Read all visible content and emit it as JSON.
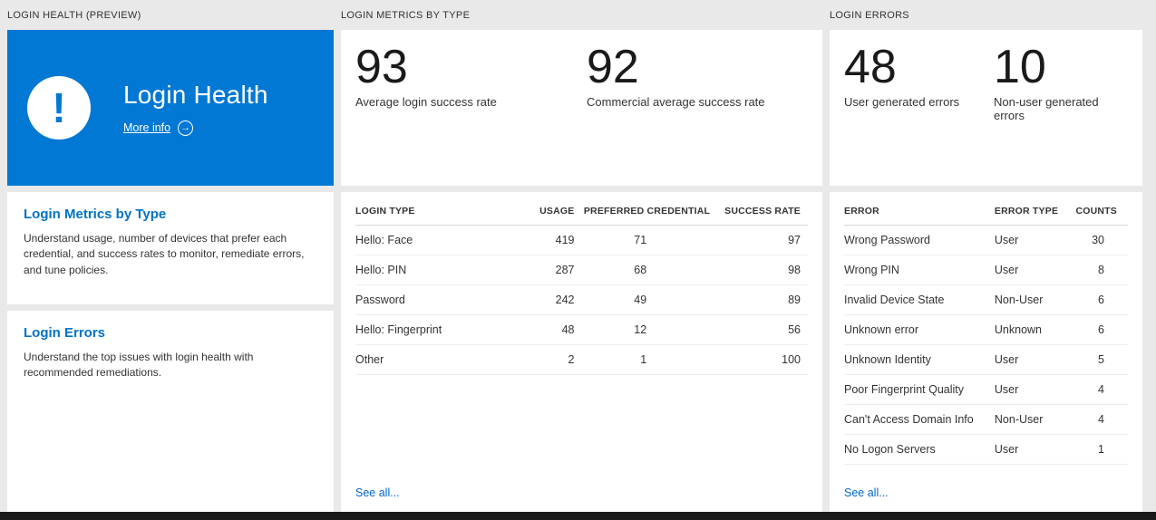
{
  "page": {
    "colors": {
      "background": "#e9e9e9",
      "banner_blue": "#0078d4",
      "heading_blue": "#0072c6",
      "link_blue": "#0066cc"
    }
  },
  "icons": {
    "exclamation": "!",
    "arrow_right": "→"
  },
  "columns": {
    "health": {
      "header": "LOGIN HEALTH (PREVIEW)",
      "banner": {
        "title": "Login Health",
        "more_info": "More info"
      },
      "cards": [
        {
          "title": "Login Metrics by Type",
          "description": "Understand usage, number of devices that prefer each credential, and success rates to monitor, remediate errors, and tune policies."
        },
        {
          "title": "Login Errors",
          "description": "Understand the top issues with login health with recommended remediations."
        }
      ]
    },
    "metrics": {
      "header": "LOGIN METRICS BY TYPE",
      "stats": [
        {
          "value": "93",
          "label": "Average login success rate"
        },
        {
          "value": "92",
          "label": "Commercial average success rate"
        }
      ],
      "table": {
        "columns": [
          "LOGIN TYPE",
          "USAGE",
          "PREFERRED CREDENTIAL",
          "SUCCESS RATE"
        ],
        "rows": [
          [
            "Hello: Face",
            "419",
            "71",
            "97"
          ],
          [
            "Hello: PIN",
            "287",
            "68",
            "98"
          ],
          [
            "Password",
            "242",
            "49",
            "89"
          ],
          [
            "Hello: Fingerprint",
            "48",
            "12",
            "56"
          ],
          [
            "Other",
            "2",
            "1",
            "100"
          ]
        ]
      },
      "see_all": "See all..."
    },
    "errors": {
      "header": "LOGIN ERRORS",
      "stats": [
        {
          "value": "48",
          "label": "User generated errors"
        },
        {
          "value": "10",
          "label": "Non-user generated errors"
        }
      ],
      "table": {
        "columns": [
          "ERROR",
          "ERROR TYPE",
          "COUNTS"
        ],
        "rows": [
          [
            "Wrong Password",
            "User",
            "30"
          ],
          [
            "Wrong PIN",
            "User",
            "8"
          ],
          [
            "Invalid Device State",
            "Non-User",
            "6"
          ],
          [
            "Unknown error",
            "Unknown",
            "6"
          ],
          [
            "Unknown Identity",
            "User",
            "5"
          ],
          [
            "Poor Fingerprint Quality",
            "User",
            "4"
          ],
          [
            "Can't Access Domain Info",
            "Non-User",
            "4"
          ],
          [
            "No Logon Servers",
            "User",
            "1"
          ]
        ]
      },
      "see_all": "See all..."
    }
  }
}
